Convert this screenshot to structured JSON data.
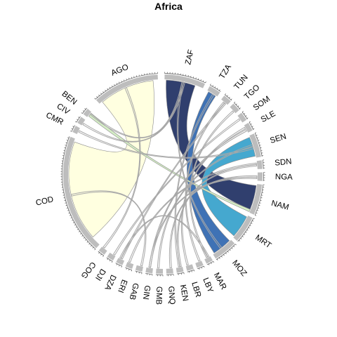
{
  "title": "Africa",
  "colors": {
    "thin_link": "#a8a8a8",
    "outer_track": "#bdbdbd",
    "ago_link": "#ffffe0",
    "zaf_link": "#303f6e",
    "tza_link": "#3f72b5",
    "sen_link": "#45a8cf",
    "ben_link": "#d4edc5"
  },
  "sectors": [
    {
      "code": "AGO"
    },
    {
      "code": "ZAF"
    },
    {
      "code": "TZA"
    },
    {
      "code": "TUN"
    },
    {
      "code": "TGO"
    },
    {
      "code": "SOM"
    },
    {
      "code": "SLE"
    },
    {
      "code": "SEN"
    },
    {
      "code": "SDN"
    },
    {
      "code": "NGA"
    },
    {
      "code": "NAM"
    },
    {
      "code": "MRT"
    },
    {
      "code": "MOZ"
    },
    {
      "code": "MAR"
    },
    {
      "code": "LBY"
    },
    {
      "code": "LBR"
    },
    {
      "code": "KEN"
    },
    {
      "code": "GNQ"
    },
    {
      "code": "GMB"
    },
    {
      "code": "GIN"
    },
    {
      "code": "GAB"
    },
    {
      "code": "ERI"
    },
    {
      "code": "DZA"
    },
    {
      "code": "DJI"
    },
    {
      "code": "COG"
    },
    {
      "code": "COD"
    },
    {
      "code": "CMR"
    },
    {
      "code": "CIV"
    },
    {
      "code": "BEN"
    }
  ],
  "links": [
    {
      "from": "AGO",
      "to": "COD",
      "style": "ago_link"
    },
    {
      "from": "ZAF",
      "to": "NAM",
      "style": "zaf_link"
    },
    {
      "from": "TZA",
      "to": "MOZ",
      "style": "tza_link"
    },
    {
      "from": "SEN",
      "to": "MRT",
      "style": "sen_link"
    },
    {
      "from": "BEN",
      "to": "NAM",
      "style": "ben_link"
    },
    {
      "from": "BEN",
      "to": "ZAF",
      "style": "thin_link"
    },
    {
      "from": "CIV",
      "to": "ZAF",
      "style": "thin_link"
    },
    {
      "from": "CMR",
      "to": "SEN",
      "style": "thin_link"
    },
    {
      "from": "COG",
      "to": "AGO",
      "style": "thin_link"
    },
    {
      "from": "DJI",
      "to": "SOM",
      "style": "thin_link"
    },
    {
      "from": "DZA",
      "to": "TUN",
      "style": "thin_link"
    },
    {
      "from": "ERI",
      "to": "SDN",
      "style": "thin_link"
    },
    {
      "from": "GAB",
      "to": "COD",
      "style": "thin_link"
    },
    {
      "from": "GIN",
      "to": "SLE",
      "style": "thin_link"
    },
    {
      "from": "GMB",
      "to": "SEN",
      "style": "thin_link"
    },
    {
      "from": "GNQ",
      "to": "NGA",
      "style": "thin_link"
    },
    {
      "from": "KEN",
      "to": "TZA",
      "style": "thin_link"
    },
    {
      "from": "LBR",
      "to": "SLE",
      "style": "thin_link"
    },
    {
      "from": "LBY",
      "to": "TUN",
      "style": "thin_link"
    },
    {
      "from": "MAR",
      "to": "TGO",
      "style": "thin_link"
    },
    {
      "from": "MOZ",
      "to": "ZAF",
      "style": "thin_link"
    },
    {
      "from": "KEN",
      "to": "SDN",
      "style": "thin_link"
    },
    {
      "from": "GIN",
      "to": "NGA",
      "style": "thin_link"
    },
    {
      "from": "DZA",
      "to": "MAR",
      "style": "thin_link"
    }
  ]
}
